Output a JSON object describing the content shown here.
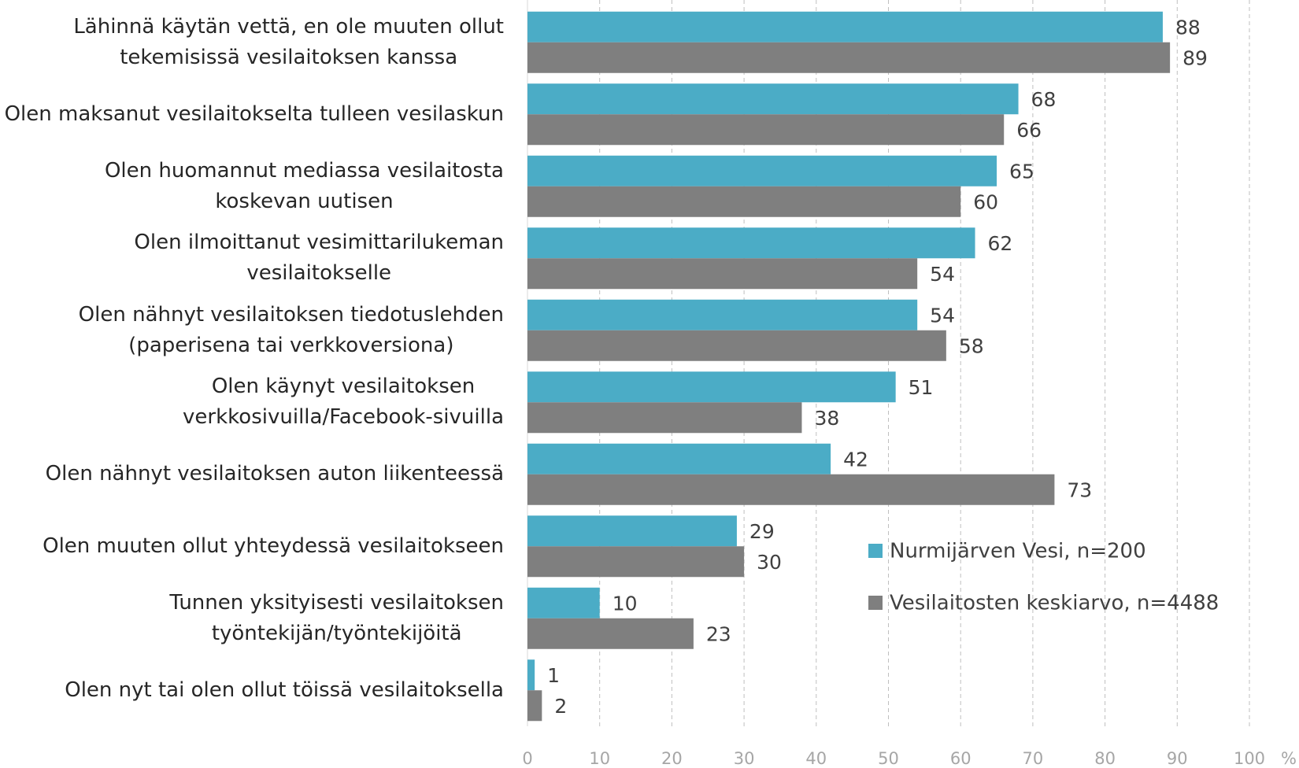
{
  "chart_data": {
    "type": "bar",
    "orientation": "horizontal",
    "categories": [
      "Lähinnä käytän vettä, en ole muuten ollut\ntekemisissä vesilaitoksen kanssa",
      "Olen maksanut vesilaitokselta tulleen vesilaskun",
      "Olen huomannut mediassa vesilaitosta\nkoskevan uutisen",
      "Olen ilmoittanut vesimittarilukeman\nvesilaitokselle",
      "Olen nähnyt vesilaitoksen tiedotuslehden\n(paperisena tai verkkoversiona)",
      "Olen käynyt vesilaitoksen\nverkkosivuilla/Facebook-sivuilla",
      "Olen nähnyt vesilaitoksen auton liikenteessä",
      "Olen muuten ollut yhteydessä vesilaitokseen",
      "Tunnen yksityisesti vesilaitoksen\ntyöntekijän/työntekijöitä",
      "Olen nyt tai olen ollut töissä vesilaitoksella"
    ],
    "series": [
      {
        "name": "Nurmijärven Vesi, n=200",
        "color": "#4bacc6",
        "values": [
          88,
          68,
          65,
          62,
          54,
          51,
          42,
          29,
          10,
          1
        ]
      },
      {
        "name": "Vesilaitosten keskiarvo, n=4488",
        "color": "#7f7f7f",
        "values": [
          89,
          66,
          60,
          54,
          58,
          38,
          73,
          30,
          23,
          2
        ]
      }
    ],
    "xlim": [
      0,
      100
    ],
    "xticks": [
      0,
      10,
      20,
      30,
      40,
      50,
      60,
      70,
      80,
      90,
      100
    ],
    "x_unit": "%",
    "grid": true
  }
}
